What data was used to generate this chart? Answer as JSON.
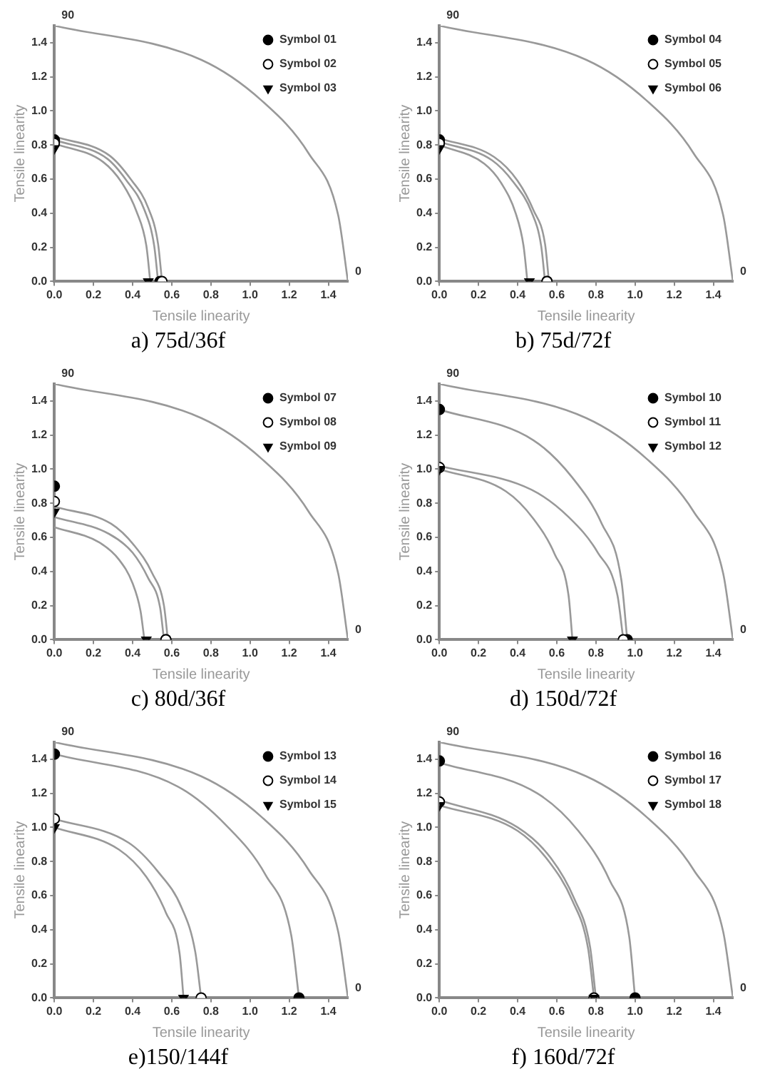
{
  "chart_data": [
    {
      "type": "scatter",
      "title": "a) 75d/36f",
      "xlabel": "Tensile linearity",
      "ylabel": "Tensile linearity",
      "xlim": [
        0,
        1.5
      ],
      "ylim": [
        0,
        1.5
      ],
      "xticks": [
        {
          "value": 0,
          "label": "0.0"
        },
        {
          "value": 0.2,
          "label": "0.2"
        },
        {
          "value": 0.4,
          "label": "0.4"
        },
        {
          "value": 0.6,
          "label": "0.6"
        },
        {
          "value": 0.8,
          "label": "0.8"
        },
        {
          "value": 1,
          "label": "1.0"
        },
        {
          "value": 1.2,
          "label": "1.2"
        },
        {
          "value": 1.4,
          "label": "1.4"
        }
      ],
      "yticks": [
        {
          "value": 0,
          "label": "0.0"
        },
        {
          "value": 0.2,
          "label": "0.2"
        },
        {
          "value": 0.4,
          "label": "0.4"
        },
        {
          "value": 0.6,
          "label": "0.6"
        },
        {
          "value": 0.8,
          "label": "0.8"
        },
        {
          "value": 1,
          "label": "1.0"
        },
        {
          "value": 1.2,
          "label": "1.2"
        },
        {
          "value": 1.4,
          "label": "1.4"
        }
      ],
      "grid": false,
      "legend": "top right",
      "annotations": [
        "90",
        "0"
      ],
      "series": [
        {
          "type": "line",
          "marker": "none",
          "color": "#999999",
          "x": [
            0,
            0.75,
            1.06,
            1.3,
            1.45,
            1.5
          ],
          "values": [
            1.5,
            1.3,
            1.06,
            0.75,
            0.39,
            0
          ]
        },
        {
          "type": "line",
          "marker": "none",
          "color": "#999999",
          "x": [
            0,
            0.28,
            0.39,
            0.48,
            0.53,
            0.55
          ],
          "values": [
            0.85,
            0.74,
            0.6,
            0.43,
            0.22,
            0
          ]
        },
        {
          "type": "line",
          "marker": "none",
          "color": "#999999",
          "x": [
            0,
            0.27,
            0.37,
            0.46,
            0.51,
            0.53
          ],
          "values": [
            0.83,
            0.72,
            0.59,
            0.42,
            0.21,
            0
          ]
        },
        {
          "type": "line",
          "marker": "none",
          "color": "#999999",
          "x": [
            0,
            0.25,
            0.35,
            0.42,
            0.47,
            0.49
          ],
          "values": [
            0.81,
            0.7,
            0.57,
            0.41,
            0.21,
            0
          ]
        },
        {
          "name": "Symbol 01",
          "type": "scatter",
          "marker": "circle",
          "color": "#000000",
          "x": [
            0,
            0.54
          ],
          "values": [
            0.83,
            0
          ]
        },
        {
          "name": "Symbol 02",
          "type": "scatter",
          "marker": "circle",
          "color": "#ffffff",
          "x": [
            0,
            0.55
          ],
          "values": [
            0.81,
            0
          ]
        },
        {
          "name": "Symbol 03",
          "type": "scatter",
          "marker": "triangle",
          "color": "#000000",
          "x": [
            0,
            0.48
          ],
          "values": [
            0.78,
            0
          ]
        }
      ]
    },
    {
      "type": "scatter",
      "title": "b) 75d/72f",
      "xlabel": "Tensile linearity",
      "ylabel": "Tensile linearity",
      "xlim": [
        0,
        1.5
      ],
      "ylim": [
        0,
        1.5
      ],
      "xticks": [
        {
          "value": 0,
          "label": "0.0"
        },
        {
          "value": 0.2,
          "label": "0.2"
        },
        {
          "value": 0.4,
          "label": "0.4"
        },
        {
          "value": 0.6,
          "label": "0.6"
        },
        {
          "value": 0.8,
          "label": "0.8"
        },
        {
          "value": 1,
          "label": "1.0"
        },
        {
          "value": 1.2,
          "label": "1.2"
        },
        {
          "value": 1.4,
          "label": "1.4"
        }
      ],
      "yticks": [
        {
          "value": 0,
          "label": "0.0"
        },
        {
          "value": 0.2,
          "label": "0.2"
        },
        {
          "value": 0.4,
          "label": "0.4"
        },
        {
          "value": 0.6,
          "label": "0.6"
        },
        {
          "value": 0.8,
          "label": "0.8"
        },
        {
          "value": 1,
          "label": "1.0"
        },
        {
          "value": 1.2,
          "label": "1.2"
        },
        {
          "value": 1.4,
          "label": "1.4"
        }
      ],
      "grid": false,
      "legend": "top right",
      "annotations": [
        "90",
        "0"
      ],
      "series": [
        {
          "type": "line",
          "marker": "none",
          "color": "#999999",
          "x": [
            0,
            0.75,
            1.06,
            1.3,
            1.45,
            1.5
          ],
          "values": [
            1.5,
            1.3,
            1.06,
            0.75,
            0.39,
            0
          ]
        },
        {
          "type": "line",
          "marker": "none",
          "color": "#999999",
          "x": [
            0,
            0.28,
            0.4,
            0.48,
            0.54,
            0.56
          ],
          "values": [
            0.84,
            0.73,
            0.59,
            0.42,
            0.22,
            0
          ]
        },
        {
          "type": "line",
          "marker": "none",
          "color": "#999999",
          "x": [
            0,
            0.27,
            0.38,
            0.47,
            0.52,
            0.54
          ],
          "values": [
            0.82,
            0.71,
            0.58,
            0.41,
            0.21,
            0
          ]
        },
        {
          "type": "line",
          "marker": "none",
          "color": "#999999",
          "x": [
            0,
            0.23,
            0.32,
            0.39,
            0.43,
            0.45
          ],
          "values": [
            0.8,
            0.69,
            0.57,
            0.4,
            0.21,
            0
          ]
        },
        {
          "name": "Symbol 04",
          "type": "scatter",
          "marker": "circle",
          "color": "#000000",
          "x": [
            0,
            0.55
          ],
          "values": [
            0.83,
            0
          ]
        },
        {
          "name": "Symbol 05",
          "type": "scatter",
          "marker": "circle",
          "color": "#ffffff",
          "x": [
            0,
            0.55
          ],
          "values": [
            0.81,
            0
          ]
        },
        {
          "name": "Symbol 06",
          "type": "scatter",
          "marker": "triangle",
          "color": "#000000",
          "x": [
            0,
            0.46
          ],
          "values": [
            0.78,
            0
          ]
        }
      ]
    },
    {
      "type": "scatter",
      "title": "c) 80d/36f",
      "xlabel": "Tensile linearity",
      "ylabel": "Tensile linearity",
      "xlim": [
        0,
        1.5
      ],
      "ylim": [
        0,
        1.5
      ],
      "xticks": [
        {
          "value": 0,
          "label": "0.0"
        },
        {
          "value": 0.2,
          "label": "0.2"
        },
        {
          "value": 0.4,
          "label": "0.4"
        },
        {
          "value": 0.6,
          "label": "0.6"
        },
        {
          "value": 0.8,
          "label": "0.8"
        },
        {
          "value": 1,
          "label": "1.0"
        },
        {
          "value": 1.2,
          "label": "1.2"
        },
        {
          "value": 1.4,
          "label": "1.4"
        }
      ],
      "yticks": [
        {
          "value": 0,
          "label": "0.0"
        },
        {
          "value": 0.2,
          "label": "0.2"
        },
        {
          "value": 0.4,
          "label": "0.4"
        },
        {
          "value": 0.6,
          "label": "0.6"
        },
        {
          "value": 0.8,
          "label": "0.8"
        },
        {
          "value": 1,
          "label": "1.0"
        },
        {
          "value": 1.2,
          "label": "1.2"
        },
        {
          "value": 1.4,
          "label": "1.4"
        }
      ],
      "grid": false,
      "legend": "top right",
      "annotations": [
        "90",
        "0"
      ],
      "series": [
        {
          "type": "line",
          "marker": "none",
          "color": "#999999",
          "x": [
            0,
            0.75,
            1.06,
            1.3,
            1.45,
            1.5
          ],
          "values": [
            1.5,
            1.3,
            1.06,
            0.75,
            0.39,
            0
          ]
        },
        {
          "type": "line",
          "marker": "none",
          "color": "#999999",
          "x": [
            0,
            0.29,
            0.41,
            0.5,
            0.56,
            0.58
          ],
          "values": [
            0.78,
            0.68,
            0.55,
            0.39,
            0.2,
            0
          ]
        },
        {
          "type": "line",
          "marker": "none",
          "color": "#999999",
          "x": [
            0,
            0.28,
            0.4,
            0.48,
            0.54,
            0.56
          ],
          "values": [
            0.72,
            0.62,
            0.51,
            0.36,
            0.19,
            0
          ]
        },
        {
          "type": "line",
          "marker": "none",
          "color": "#999999",
          "x": [
            0,
            0.23,
            0.33,
            0.4,
            0.44,
            0.46
          ],
          "values": [
            0.66,
            0.57,
            0.47,
            0.33,
            0.17,
            0
          ]
        },
        {
          "name": "Symbol 07",
          "type": "scatter",
          "marker": "circle",
          "color": "#000000",
          "x": [
            0,
            0.57
          ],
          "values": [
            0.9,
            0
          ]
        },
        {
          "name": "Symbol 08",
          "type": "scatter",
          "marker": "circle",
          "color": "#ffffff",
          "x": [
            0,
            0.57
          ],
          "values": [
            0.81,
            0
          ]
        },
        {
          "name": "Symbol 09",
          "type": "scatter",
          "marker": "triangle",
          "color": "#000000",
          "x": [
            0,
            0.47
          ],
          "values": [
            0.75,
            0
          ]
        }
      ]
    },
    {
      "type": "scatter",
      "title": "d) 150d/72f",
      "xlabel": "Tensile linearity",
      "ylabel": "Tensile linearity",
      "xlim": [
        0,
        1.5
      ],
      "ylim": [
        0,
        1.5
      ],
      "xticks": [
        {
          "value": 0,
          "label": "0.0"
        },
        {
          "value": 0.2,
          "label": "0.2"
        },
        {
          "value": 0.4,
          "label": "0.4"
        },
        {
          "value": 0.6,
          "label": "0.6"
        },
        {
          "value": 0.8,
          "label": "0.8"
        },
        {
          "value": 1,
          "label": "1.0"
        },
        {
          "value": 1.2,
          "label": "1.2"
        },
        {
          "value": 1.4,
          "label": "1.4"
        }
      ],
      "yticks": [
        {
          "value": 0,
          "label": "0.0"
        },
        {
          "value": 0.2,
          "label": "0.2"
        },
        {
          "value": 0.4,
          "label": "0.4"
        },
        {
          "value": 0.6,
          "label": "0.6"
        },
        {
          "value": 0.8,
          "label": "0.8"
        },
        {
          "value": 1,
          "label": "1.0"
        },
        {
          "value": 1.2,
          "label": "1.2"
        },
        {
          "value": 1.4,
          "label": "1.4"
        }
      ],
      "grid": false,
      "legend": "top right",
      "annotations": [
        "90",
        "0"
      ],
      "series": [
        {
          "type": "line",
          "marker": "none",
          "color": "#999999",
          "x": [
            0,
            0.75,
            1.06,
            1.3,
            1.45,
            1.5
          ],
          "values": [
            1.5,
            1.3,
            1.06,
            0.75,
            0.39,
            0
          ]
        },
        {
          "type": "line",
          "marker": "none",
          "color": "#999999",
          "x": [
            0,
            0.48,
            0.68,
            0.83,
            0.93,
            0.96
          ],
          "values": [
            1.35,
            1.17,
            0.95,
            0.68,
            0.35,
            0
          ]
        },
        {
          "type": "line",
          "marker": "none",
          "color": "#999999",
          "x": [
            0,
            0.47,
            0.66,
            0.81,
            0.91,
            0.94
          ],
          "values": [
            1.02,
            0.88,
            0.72,
            0.51,
            0.26,
            0
          ]
        },
        {
          "type": "line",
          "marker": "none",
          "color": "#999999",
          "x": [
            0,
            0.34,
            0.48,
            0.59,
            0.66,
            0.68
          ],
          "values": [
            1,
            0.87,
            0.71,
            0.5,
            0.26,
            0
          ]
        },
        {
          "name": "Symbol 10",
          "type": "scatter",
          "marker": "circle",
          "color": "#000000",
          "x": [
            0,
            0.96
          ],
          "values": [
            1.35,
            0
          ]
        },
        {
          "name": "Symbol 11",
          "type": "scatter",
          "marker": "circle",
          "color": "#ffffff",
          "x": [
            0,
            0.94
          ],
          "values": [
            1.01,
            0
          ]
        },
        {
          "name": "Symbol 12",
          "type": "scatter",
          "marker": "triangle",
          "color": "#000000",
          "x": [
            0,
            0.68
          ],
          "values": [
            1,
            0
          ]
        }
      ]
    },
    {
      "type": "scatter",
      "title": "e)150/144f",
      "xlabel": "Tensile linearity",
      "ylabel": "Tensile linearity",
      "xlim": [
        0,
        1.5
      ],
      "ylim": [
        0,
        1.5
      ],
      "xticks": [
        {
          "value": 0,
          "label": "0.0"
        },
        {
          "value": 0.2,
          "label": "0.2"
        },
        {
          "value": 0.4,
          "label": "0.4"
        },
        {
          "value": 0.6,
          "label": "0.6"
        },
        {
          "value": 0.8,
          "label": "0.8"
        },
        {
          "value": 1,
          "label": "1.0"
        },
        {
          "value": 1.2,
          "label": "1.2"
        },
        {
          "value": 1.4,
          "label": "1.4"
        }
      ],
      "yticks": [
        {
          "value": 0,
          "label": "0.0"
        },
        {
          "value": 0.2,
          "label": "0.2"
        },
        {
          "value": 0.4,
          "label": "0.4"
        },
        {
          "value": 0.6,
          "label": "0.6"
        },
        {
          "value": 0.8,
          "label": "0.8"
        },
        {
          "value": 1,
          "label": "1.0"
        },
        {
          "value": 1.2,
          "label": "1.2"
        },
        {
          "value": 1.4,
          "label": "1.4"
        }
      ],
      "grid": false,
      "legend": "top right",
      "annotations": [
        "90",
        "0"
      ],
      "series": [
        {
          "type": "line",
          "marker": "none",
          "color": "#999999",
          "x": [
            0,
            0.75,
            1.06,
            1.3,
            1.45,
            1.5
          ],
          "values": [
            1.5,
            1.3,
            1.06,
            0.75,
            0.39,
            0
          ]
        },
        {
          "type": "line",
          "marker": "none",
          "color": "#999999",
          "x": [
            0,
            0.63,
            0.88,
            1.08,
            1.21,
            1.25
          ],
          "values": [
            1.43,
            1.24,
            1.01,
            0.72,
            0.37,
            0
          ]
        },
        {
          "type": "line",
          "marker": "none",
          "color": "#999999",
          "x": [
            0,
            0.38,
            0.53,
            0.65,
            0.72,
            0.75
          ],
          "values": [
            1.05,
            0.91,
            0.74,
            0.53,
            0.27,
            0
          ]
        },
        {
          "type": "line",
          "marker": "none",
          "color": "#999999",
          "x": [
            0,
            0.33,
            0.47,
            0.57,
            0.64,
            0.66
          ],
          "values": [
            1,
            0.87,
            0.71,
            0.5,
            0.26,
            0
          ]
        },
        {
          "name": "Symbol 13",
          "type": "scatter",
          "marker": "circle",
          "color": "#000000",
          "x": [
            0,
            1.25
          ],
          "values": [
            1.43,
            0
          ]
        },
        {
          "name": "Symbol 14",
          "type": "scatter",
          "marker": "circle",
          "color": "#ffffff",
          "x": [
            0,
            0.75
          ],
          "values": [
            1.05,
            0
          ]
        },
        {
          "name": "Symbol 15",
          "type": "scatter",
          "marker": "triangle",
          "color": "#000000",
          "x": [
            0,
            0.66
          ],
          "values": [
            1,
            0
          ]
        }
      ]
    },
    {
      "type": "scatter",
      "title": "f) 160d/72f",
      "xlabel": "Tensile linearity",
      "ylabel": "Tensile linearity",
      "xlim": [
        0,
        1.5
      ],
      "ylim": [
        0,
        1.5
      ],
      "xticks": [
        {
          "value": 0,
          "label": "0.0"
        },
        {
          "value": 0.2,
          "label": "0.2"
        },
        {
          "value": 0.4,
          "label": "0.4"
        },
        {
          "value": 0.6,
          "label": "0.6"
        },
        {
          "value": 0.8,
          "label": "0.8"
        },
        {
          "value": 1,
          "label": "1.0"
        },
        {
          "value": 1.2,
          "label": "1.2"
        },
        {
          "value": 1.4,
          "label": "1.4"
        }
      ],
      "yticks": [
        {
          "value": 0,
          "label": "0.0"
        },
        {
          "value": 0.2,
          "label": "0.2"
        },
        {
          "value": 0.4,
          "label": "0.4"
        },
        {
          "value": 0.6,
          "label": "0.6"
        },
        {
          "value": 0.8,
          "label": "0.8"
        },
        {
          "value": 1,
          "label": "1.0"
        },
        {
          "value": 1.2,
          "label": "1.2"
        },
        {
          "value": 1.4,
          "label": "1.4"
        }
      ],
      "grid": false,
      "legend": "top right",
      "annotations": [
        "90",
        "0"
      ],
      "series": [
        {
          "type": "line",
          "marker": "none",
          "color": "#999999",
          "x": [
            0,
            0.75,
            1.06,
            1.3,
            1.45,
            1.5
          ],
          "values": [
            1.5,
            1.3,
            1.06,
            0.75,
            0.39,
            0
          ]
        },
        {
          "type": "line",
          "marker": "none",
          "color": "#999999",
          "x": [
            0,
            0.5,
            0.71,
            0.87,
            0.97,
            1
          ],
          "values": [
            1.38,
            1.2,
            0.98,
            0.69,
            0.36,
            0
          ]
        },
        {
          "type": "line",
          "marker": "none",
          "color": "#999999",
          "x": [
            0,
            0.4,
            0.57,
            0.69,
            0.77,
            0.8
          ],
          "values": [
            1.16,
            1,
            0.82,
            0.58,
            0.3,
            0
          ]
        },
        {
          "type": "line",
          "marker": "none",
          "color": "#999999",
          "x": [
            0,
            0.4,
            0.56,
            0.68,
            0.76,
            0.79
          ],
          "values": [
            1.13,
            0.98,
            0.8,
            0.57,
            0.29,
            0
          ]
        },
        {
          "name": "Symbol 16",
          "type": "scatter",
          "marker": "circle",
          "color": "#000000",
          "x": [
            0,
            1
          ],
          "values": [
            1.39,
            0
          ]
        },
        {
          "name": "Symbol 17",
          "type": "scatter",
          "marker": "circle",
          "color": "#ffffff",
          "x": [
            0,
            0.79
          ],
          "values": [
            1.15,
            0
          ]
        },
        {
          "name": "Symbol 18",
          "type": "scatter",
          "marker": "triangle",
          "color": "#000000",
          "x": [
            0,
            0.79
          ],
          "values": [
            1.13,
            0
          ]
        }
      ]
    }
  ]
}
